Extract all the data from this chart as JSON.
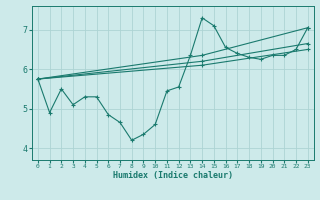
{
  "xlabel": "Humidex (Indice chaleur)",
  "bg_color": "#cdeaea",
  "grid_color": "#add4d4",
  "line_color": "#1a7a6e",
  "xlim": [
    -0.5,
    23.5
  ],
  "ylim": [
    3.7,
    7.6
  ],
  "yticks": [
    4,
    5,
    6,
    7
  ],
  "xticks": [
    0,
    1,
    2,
    3,
    4,
    5,
    6,
    7,
    8,
    9,
    10,
    11,
    12,
    13,
    14,
    15,
    16,
    17,
    18,
    19,
    20,
    21,
    22,
    23
  ],
  "lines": [
    {
      "x": [
        0,
        1,
        2,
        3,
        4,
        5,
        6,
        7,
        8,
        9,
        10,
        11,
        12,
        13,
        14,
        15,
        16,
        17,
        18,
        19,
        20,
        21,
        22,
        23
      ],
      "y": [
        5.75,
        4.9,
        5.5,
        5.1,
        5.3,
        5.3,
        4.85,
        4.65,
        4.2,
        4.35,
        4.6,
        5.45,
        5.55,
        6.35,
        7.3,
        7.1,
        6.55,
        6.4,
        6.3,
        6.25,
        6.35,
        6.35,
        6.5,
        7.05
      ]
    },
    {
      "x": [
        0,
        14,
        23
      ],
      "y": [
        5.75,
        6.1,
        6.5
      ]
    },
    {
      "x": [
        0,
        14,
        23
      ],
      "y": [
        5.75,
        6.2,
        6.65
      ]
    },
    {
      "x": [
        0,
        14,
        23
      ],
      "y": [
        5.75,
        6.35,
        7.05
      ]
    }
  ]
}
